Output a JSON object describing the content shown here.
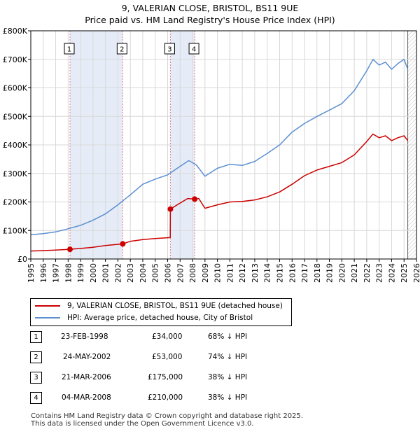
{
  "header": {
    "title": "9, VALERIAN CLOSE, BRISTOL, BS11 9UE",
    "subtitle": "Price paid vs. HM Land Registry's House Price Index (HPI)"
  },
  "colors": {
    "property": "#cc0000",
    "hpi": "#5b8fd0",
    "shade": "#e6ecf7",
    "grid": "#d8d8d8",
    "marker_line": "#e08080"
  },
  "chart_data": {
    "type": "line",
    "title": "9, VALERIAN CLOSE, BRISTOL, BS11 9UE",
    "xlim": [
      1995,
      2026
    ],
    "ylim": [
      0,
      800000
    ],
    "y_ticks": [
      0,
      100000,
      200000,
      300000,
      400000,
      500000,
      600000,
      700000,
      800000
    ],
    "y_tick_labels": [
      "£0",
      "£100K",
      "£200K",
      "£300K",
      "£400K",
      "£500K",
      "£600K",
      "£700K",
      "£800K"
    ],
    "x_ticks": [
      1995,
      1996,
      1997,
      1998,
      1999,
      2000,
      2001,
      2002,
      2003,
      2004,
      2005,
      2006,
      2007,
      2008,
      2009,
      2010,
      2011,
      2012,
      2013,
      2014,
      2015,
      2016,
      2017,
      2018,
      2019,
      2020,
      2021,
      2022,
      2023,
      2024,
      2025,
      2026
    ],
    "x_tick_labels": [
      "1995",
      "1996",
      "1997",
      "1998",
      "1999",
      "2000",
      "2001",
      "2002",
      "2003",
      "2004",
      "2005",
      "2006",
      "2007",
      "2008",
      "2009",
      "2010",
      "2011",
      "2012",
      "2013",
      "2014",
      "2015",
      "2016",
      "2017",
      "2018",
      "2019",
      "2020",
      "2021",
      "2022",
      "2023",
      "2024",
      "2025",
      "2026"
    ],
    "shaded_ranges": [
      [
        1998.15,
        2002.39
      ],
      [
        2006.22,
        2008.17
      ]
    ],
    "data_end": 2025.3,
    "series": [
      {
        "name": "9, VALERIAN CLOSE, BRISTOL, BS11 9UE (detached house)",
        "points": [
          [
            1995,
            28000
          ],
          [
            1996,
            29500
          ],
          [
            1997,
            31500
          ],
          [
            1998.15,
            34000
          ],
          [
            1999,
            37000
          ],
          [
            2000,
            41000
          ],
          [
            2001,
            47000
          ],
          [
            2002.39,
            53000
          ],
          [
            2003,
            62000
          ],
          [
            2004,
            68000
          ],
          [
            2005,
            72000
          ],
          [
            2006.21,
            75000
          ],
          [
            2006.22,
            175000
          ],
          [
            2007,
            196000
          ],
          [
            2007.6,
            212000
          ],
          [
            2008.17,
            210000
          ],
          [
            2008.5,
            212000
          ],
          [
            2009,
            178000
          ],
          [
            2010,
            190000
          ],
          [
            2011,
            200000
          ],
          [
            2012,
            202000
          ],
          [
            2013,
            207000
          ],
          [
            2014,
            218000
          ],
          [
            2015,
            235000
          ],
          [
            2016,
            262000
          ],
          [
            2017,
            292000
          ],
          [
            2018,
            312000
          ],
          [
            2019,
            325000
          ],
          [
            2020,
            338000
          ],
          [
            2021,
            365000
          ],
          [
            2022,
            412000
          ],
          [
            2022.5,
            438000
          ],
          [
            2023,
            425000
          ],
          [
            2023.5,
            432000
          ],
          [
            2024,
            415000
          ],
          [
            2024.5,
            425000
          ],
          [
            2025,
            432000
          ],
          [
            2025.3,
            415000
          ]
        ]
      },
      {
        "name": "HPI: Average price, detached house, City of Bristol",
        "points": [
          [
            1995,
            85000
          ],
          [
            1996,
            89000
          ],
          [
            1997,
            95000
          ],
          [
            1998,
            106000
          ],
          [
            1999,
            118000
          ],
          [
            2000,
            136000
          ],
          [
            2001,
            158000
          ],
          [
            2002,
            190000
          ],
          [
            2003,
            225000
          ],
          [
            2004,
            262000
          ],
          [
            2005,
            280000
          ],
          [
            2006,
            295000
          ],
          [
            2007,
            325000
          ],
          [
            2007.7,
            345000
          ],
          [
            2008.3,
            330000
          ],
          [
            2009,
            290000
          ],
          [
            2010,
            318000
          ],
          [
            2011,
            332000
          ],
          [
            2012,
            328000
          ],
          [
            2013,
            342000
          ],
          [
            2014,
            370000
          ],
          [
            2015,
            400000
          ],
          [
            2016,
            445000
          ],
          [
            2017,
            475000
          ],
          [
            2018,
            500000
          ],
          [
            2019,
            522000
          ],
          [
            2020,
            545000
          ],
          [
            2021,
            590000
          ],
          [
            2022,
            660000
          ],
          [
            2022.5,
            700000
          ],
          [
            2023,
            680000
          ],
          [
            2023.5,
            690000
          ],
          [
            2024,
            665000
          ],
          [
            2024.5,
            685000
          ],
          [
            2025,
            700000
          ],
          [
            2025.3,
            665000
          ]
        ]
      }
    ],
    "sales": [
      {
        "num": "1",
        "year": 1998.15,
        "price": 34000
      },
      {
        "num": "2",
        "year": 2002.39,
        "price": 53000
      },
      {
        "num": "3",
        "year": 2006.22,
        "price": 175000
      },
      {
        "num": "4",
        "year": 2008.17,
        "price": 210000
      }
    ]
  },
  "legend": {
    "property_label": "9, VALERIAN CLOSE, BRISTOL, BS11 9UE (detached house)",
    "hpi_label": "HPI: Average price, detached house, City of Bristol"
  },
  "sales_table": [
    {
      "num": "1",
      "date": "23-FEB-1998",
      "price": "£34,000",
      "hpi": "68% ↓ HPI"
    },
    {
      "num": "2",
      "date": "24-MAY-2002",
      "price": "£53,000",
      "hpi": "74% ↓ HPI"
    },
    {
      "num": "3",
      "date": "21-MAR-2006",
      "price": "£175,000",
      "hpi": "38% ↓ HPI"
    },
    {
      "num": "4",
      "date": "04-MAR-2008",
      "price": "£210,000",
      "hpi": "38% ↓ HPI"
    }
  ],
  "footer": {
    "line1": "Contains HM Land Registry data © Crown copyright and database right 2025.",
    "line2": "This data is licensed under the Open Government Licence v3.0."
  }
}
